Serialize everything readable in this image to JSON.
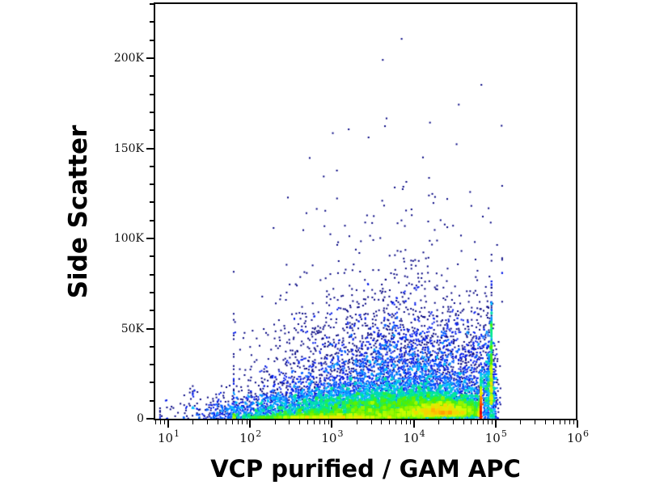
{
  "figure": {
    "background": "#ffffff",
    "text_color": "#000000"
  },
  "chart_data": {
    "type": "scatter",
    "subtype": "flow_cytometry_pseudocolor_density_dot_plot",
    "title": "",
    "xlabel": "VCP purified / GAM APC",
    "ylabel": "Side Scatter",
    "x_scale": "log10",
    "x_range_log10": [
      0.82,
      6.0
    ],
    "x_tick_base": "10",
    "x_major_tick_exponents": [
      1,
      2,
      3,
      4,
      5,
      6
    ],
    "x_minor_tick_multiples": [
      2,
      3,
      4,
      5,
      6,
      7,
      8,
      9
    ],
    "y_scale": "linear",
    "y_range": [
      0,
      230000
    ],
    "y_major_ticks": [
      {
        "value_k": 0,
        "label": "0"
      },
      {
        "value_k": 50,
        "label": "50K"
      },
      {
        "value_k": 100,
        "label": "100K"
      },
      {
        "value_k": 150,
        "label": "150K"
      },
      {
        "value_k": 200,
        "label": "200K"
      }
    ],
    "y_minor_tick_step_k": 10,
    "y_minor_tick_max_k": 230,
    "grid": false,
    "legend": null,
    "dot_size_px": 2,
    "density_colormap": [
      "#000080",
      "#0000E0",
      "#0055FF",
      "#00BBFF",
      "#00EE88",
      "#55EE00",
      "#CCFF00",
      "#FFCC00",
      "#FF6600",
      "#E00000"
    ],
    "seed": 1337,
    "n_events_rendered": 17600,
    "populations": [
      {
        "name": "main_low_ssc_band",
        "n": 8500,
        "lx_mean": 3.75,
        "lx_sd": 0.85,
        "lx_clip": [
          1.3,
          4.82
        ],
        "ssc_base_k": 0.3,
        "ssc_sd_k": 8,
        "ssc_clip_k": 228
      },
      {
        "name": "hot_core_2e4_to_5e4",
        "n": 2500,
        "lx_mean": 4.35,
        "lx_sd": 0.25,
        "lx_clip": [
          3.6,
          4.8
        ],
        "ssc_base_k": 2,
        "ssc_sd_k": 4,
        "ssc_clip_k": 228
      },
      {
        "name": "bottom_streak",
        "n": 1200,
        "lx_mean": 2.9,
        "lx_sd": 0.55,
        "lx_clip": [
          1.8,
          4.8
        ],
        "ssc_base_k": 0,
        "ssc_sd_k": 1.2,
        "ssc_clip_k": 228
      },
      {
        "name": "mid_ssc_cloud",
        "n": 4200,
        "lx_mean": 3.95,
        "lx_sd": 0.85,
        "lx_clip": [
          1.8,
          4.95
        ],
        "ssc_base_k": 8,
        "ssc_sd_k": 26,
        "ssc_clip_k": 228
      },
      {
        "name": "right_edge_pileup",
        "n": 550,
        "lx_mean": 4.93,
        "lx_sd": 0.05,
        "lx_clip": [
          4.82,
          5.06
        ],
        "ssc_base_k": 0,
        "ssc_sd_k": 22,
        "ssc_clip_k": 228
      },
      {
        "name": "left_debris",
        "n": 500,
        "lx_mean": 2.05,
        "lx_sd": 0.5,
        "lx_clip": [
          0.9,
          4.8
        ],
        "ssc_base_k": 0,
        "ssc_sd_k": 6,
        "ssc_clip_k": 228
      },
      {
        "name": "high_ssc_outliers",
        "n": 150,
        "lx_mean": 3.9,
        "lx_sd": 0.7,
        "lx_clip": [
          1.1,
          5.08
        ],
        "ssc_base_k": 55,
        "ssc_sd_k": 60,
        "ssc_clip_k": 228
      }
    ]
  }
}
